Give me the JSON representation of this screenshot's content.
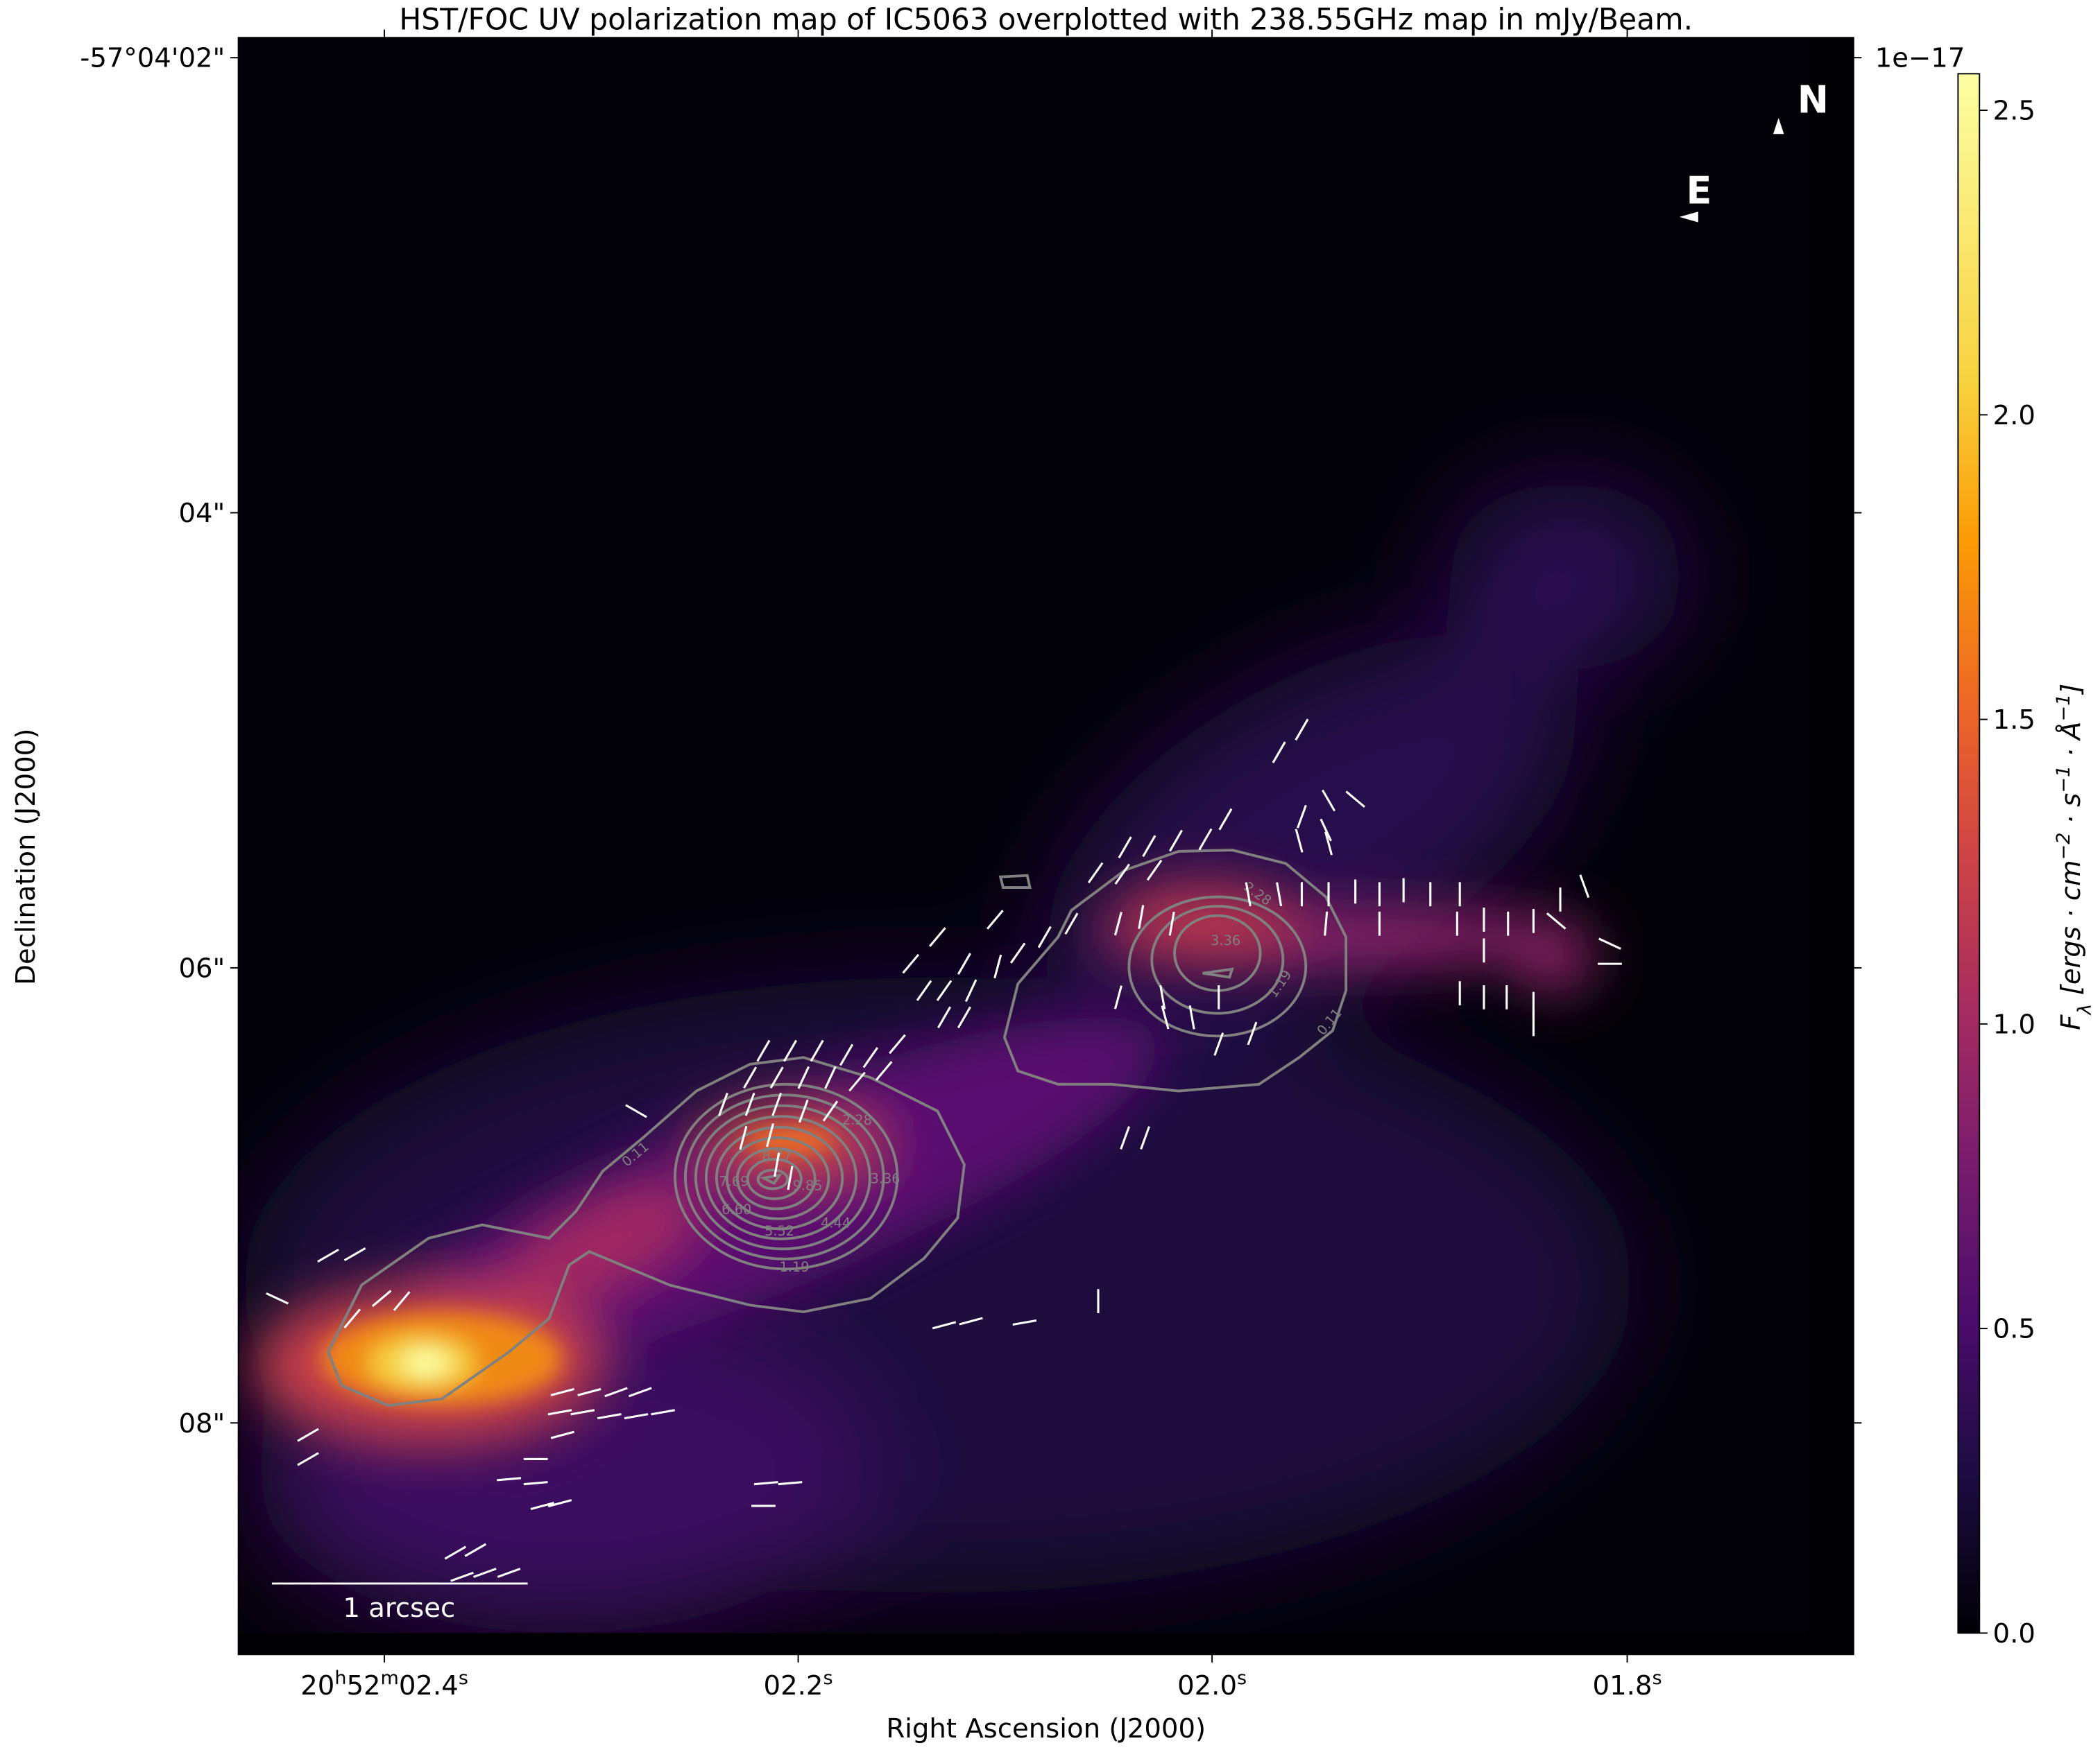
{
  "chart_data": {
    "type": "heatmap",
    "title": "HST/FOC UV polarization map of IC5063 overplotted with 238.55GHz map in mJy/Beam.",
    "xlabel": "Right Ascension (J2000)",
    "ylabel": "Declination (J2000)",
    "x_ticks": [
      [
        {
          "t": "20"
        },
        {
          "t": "h",
          "sup": true
        },
        {
          "t": "52"
        },
        {
          "t": "m",
          "sup": true
        },
        {
          "t": "02.4"
        },
        {
          "t": "s",
          "sup": true
        }
      ],
      [
        {
          "t": "02.2"
        },
        {
          "t": "s",
          "sup": true
        }
      ],
      [
        {
          "t": "02.0"
        },
        {
          "t": "s",
          "sup": true
        }
      ],
      [
        {
          "t": "01.8"
        },
        {
          "t": "s",
          "sup": true
        }
      ]
    ],
    "y_ticks": [
      "-57°04'02\"",
      "04\"",
      "06\"",
      "08\""
    ],
    "colorbar": {
      "label": "F_λ [ergs · cm^-2 · s^-1 · Å^-1]",
      "label_parts": [
        {
          "t": "F"
        },
        {
          "t": "λ",
          "sub": true
        },
        {
          "t": " [ergs · cm"
        },
        {
          "t": "−2",
          "sup": true
        },
        {
          "t": " · s"
        },
        {
          "t": "−1",
          "sup": true
        },
        {
          "t": " · Å"
        },
        {
          "t": "−1",
          "sup": true
        },
        {
          "t": "]"
        }
      ],
      "offset_text": "1e−17",
      "range": [
        0.0,
        2.56
      ],
      "ticks": [
        "0.0",
        "0.5",
        "1.0",
        "1.5",
        "2.0",
        "2.5"
      ],
      "tick_values": [
        0.0,
        0.5,
        1.0,
        1.5,
        2.0,
        2.5
      ],
      "colormap": "inferno"
    },
    "contour_levels": [
      "0.11",
      "1.19",
      "2.28",
      "3.36",
      "4.44",
      "5.52",
      "6.60",
      "7.69",
      "8.77",
      "9.85"
    ],
    "contour_color": "#808080",
    "vector_color": "#ffffff",
    "scale_bar": "1 arcsec",
    "compass": {
      "north": "N",
      "east": "E"
    }
  }
}
